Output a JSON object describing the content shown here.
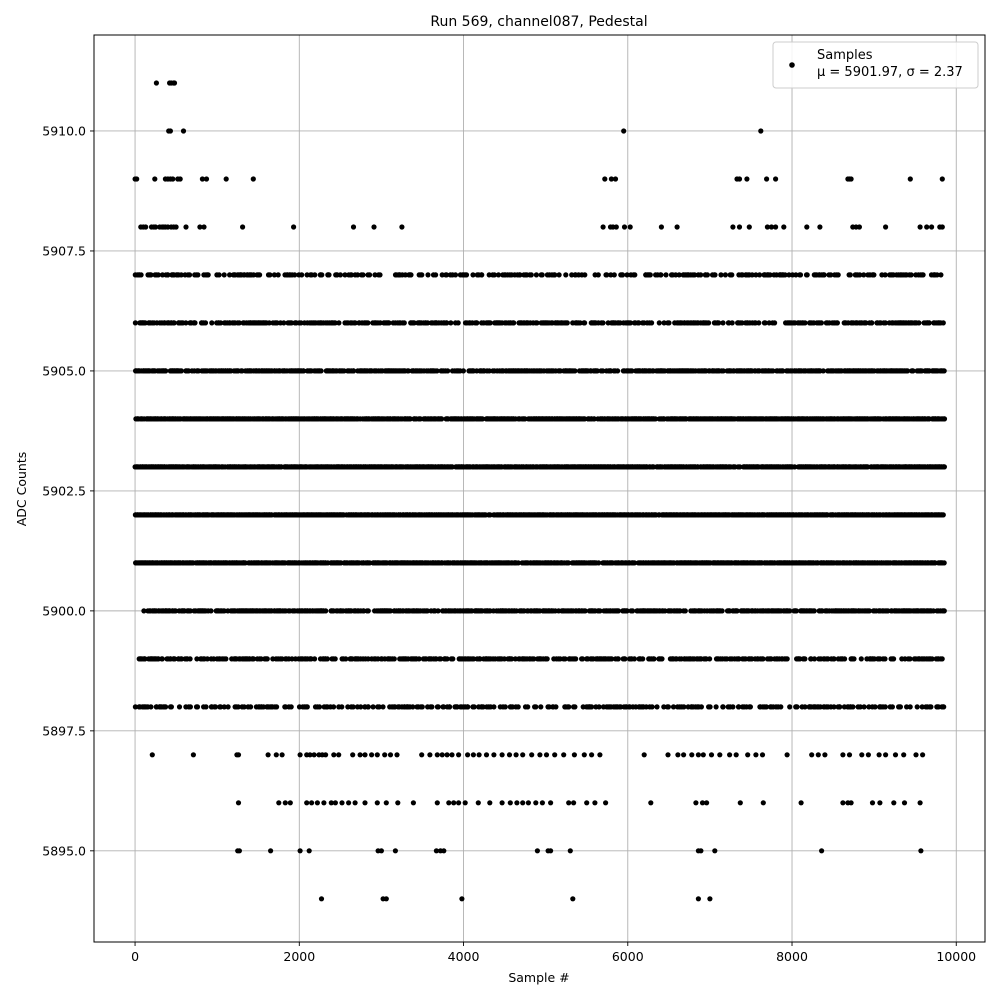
{
  "chart_data": {
    "type": "scatter",
    "title": "Run 569, channel087, Pedestal",
    "xlabel": "Sample #",
    "ylabel": "ADC Counts",
    "xlim": [
      -500,
      10350
    ],
    "ylim": [
      5893.1,
      5912.0
    ],
    "xticks": [
      0,
      2000,
      4000,
      6000,
      8000,
      10000
    ],
    "xtick_labels": [
      "0",
      "2000",
      "4000",
      "6000",
      "8000",
      "10000"
    ],
    "yticks": [
      5895.0,
      5897.5,
      5900.0,
      5902.5,
      5905.0,
      5907.5,
      5910.0
    ],
    "ytick_labels": [
      "5895.0",
      "5897.5",
      "5900.0",
      "5902.5",
      "5905.0",
      "5907.5",
      "5910.0"
    ],
    "grid": true,
    "marker_color": "#000000",
    "legend": {
      "placement": "top-right",
      "entries": [
        {
          "name": "Samples",
          "stats": "μ = 5901.97, σ = 2.37"
        }
      ]
    },
    "n_samples": 9850,
    "series": [
      {
        "name": "Samples",
        "levels": [
          {
            "y": 5911,
            "x": [
              260,
              420,
              440,
              470,
              480
            ]
          },
          {
            "y": 5910,
            "x": [
              410,
              430,
              590,
              5950,
              7620
            ]
          },
          {
            "y": 5909,
            "x": [
              0,
              20,
              240,
              370,
              400,
              430,
              460,
              520,
              550,
              820,
              870,
              1110,
              1440,
              5720,
              5800,
              5850,
              7330,
              7360,
              7450,
              7690,
              7800,
              8680,
              8700,
              8720,
              9440,
              9830
            ]
          },
          {
            "y": 5908,
            "x": [
              70,
              100,
              130,
              200,
              230,
              250,
              300,
              330,
              350,
              370,
              400,
              440,
              470,
              500,
              620,
              790,
              840,
              1310,
              1930,
              2660,
              2910,
              3250,
              5700,
              5790,
              5820,
              5860,
              5960,
              6030,
              6410,
              6600,
              7280,
              7360,
              7480,
              7700,
              7750,
              7800,
              7900,
              8180,
              8340,
              8740,
              8780,
              8820,
              9140,
              9560,
              9640,
              9700,
              9800,
              9830
            ]
          },
          {
            "y": 5907,
            "start": 0,
            "end": 9850,
            "density": 0.32,
            "seed": 11
          },
          {
            "y": 5906,
            "start": 0,
            "end": 9850,
            "density": 0.45,
            "seed": 23
          },
          {
            "y": 5905,
            "start": 0,
            "end": 9850,
            "density": 0.62,
            "seed": 37
          },
          {
            "y": 5904,
            "start": 0,
            "end": 9850,
            "density": 0.85,
            "seed": 41
          },
          {
            "y": 5903,
            "start": 0,
            "end": 9850,
            "density": 0.82,
            "seed": 53
          },
          {
            "y": 5902,
            "start": 0,
            "end": 9850,
            "density": 0.85,
            "seed": 67
          },
          {
            "y": 5901,
            "start": 0,
            "end": 9850,
            "density": 0.78,
            "seed": 71
          },
          {
            "y": 5900,
            "start": 100,
            "end": 9850,
            "density": 0.58,
            "seed": 83
          },
          {
            "y": 5899,
            "start": 50,
            "end": 9850,
            "density": 0.42,
            "seed": 97
          },
          {
            "y": 5898,
            "start": 0,
            "end": 9850,
            "density": 0.3,
            "seed": 101
          },
          {
            "y": 5897,
            "x": [
              210,
              710,
              1240,
              1260,
              1620,
              1720,
              1790,
              2010,
              2090,
              2130,
              2180,
              2240,
              2280,
              2320,
              2420,
              2480,
              2650,
              2740,
              2800,
              2880,
              2950,
              3040,
              3110,
              3190,
              3490,
              3590,
              3680,
              3740,
              3800,
              3860,
              3940,
              4050,
              4120,
              4190,
              4280,
              4370,
              4470,
              4560,
              4640,
              4720,
              4830,
              4930,
              5010,
              5110,
              5220,
              5350,
              5470,
              5560,
              5660,
              6200,
              6490,
              6610,
              6680,
              6780,
              6860,
              6920,
              7020,
              7120,
              7240,
              7320,
              7460,
              7560,
              7640,
              7940,
              8240,
              8320,
              8400,
              8620,
              8700,
              8850,
              8930,
              9060,
              9140,
              9260,
              9360,
              9510,
              9590
            ]
          },
          {
            "y": 5896,
            "x": [
              1260,
              1750,
              1830,
              1890,
              2090,
              2150,
              2220,
              2300,
              2390,
              2440,
              2520,
              2600,
              2680,
              2800,
              2950,
              3060,
              3200,
              3390,
              3680,
              3820,
              3880,
              3940,
              4020,
              4180,
              4320,
              4470,
              4570,
              4650,
              4720,
              4790,
              4880,
              4960,
              5060,
              5280,
              5340,
              5500,
              5600,
              5730,
              6280,
              6830,
              6910,
              6960,
              7370,
              7650,
              8110,
              8620,
              8680,
              8720,
              8980,
              9070,
              9240,
              9370,
              9560
            ]
          },
          {
            "y": 5895,
            "x": [
              1250,
              1270,
              1650,
              2010,
              2120,
              2960,
              3000,
              3170,
              3670,
              3720,
              3760,
              4900,
              5030,
              5060,
              5300,
              6860,
              6890,
              7060,
              8360,
              9570
            ]
          },
          {
            "y": 5894,
            "x": [
              2270,
              3020,
              3060,
              3980,
              5330,
              6860,
              7000
            ]
          }
        ]
      }
    ]
  }
}
